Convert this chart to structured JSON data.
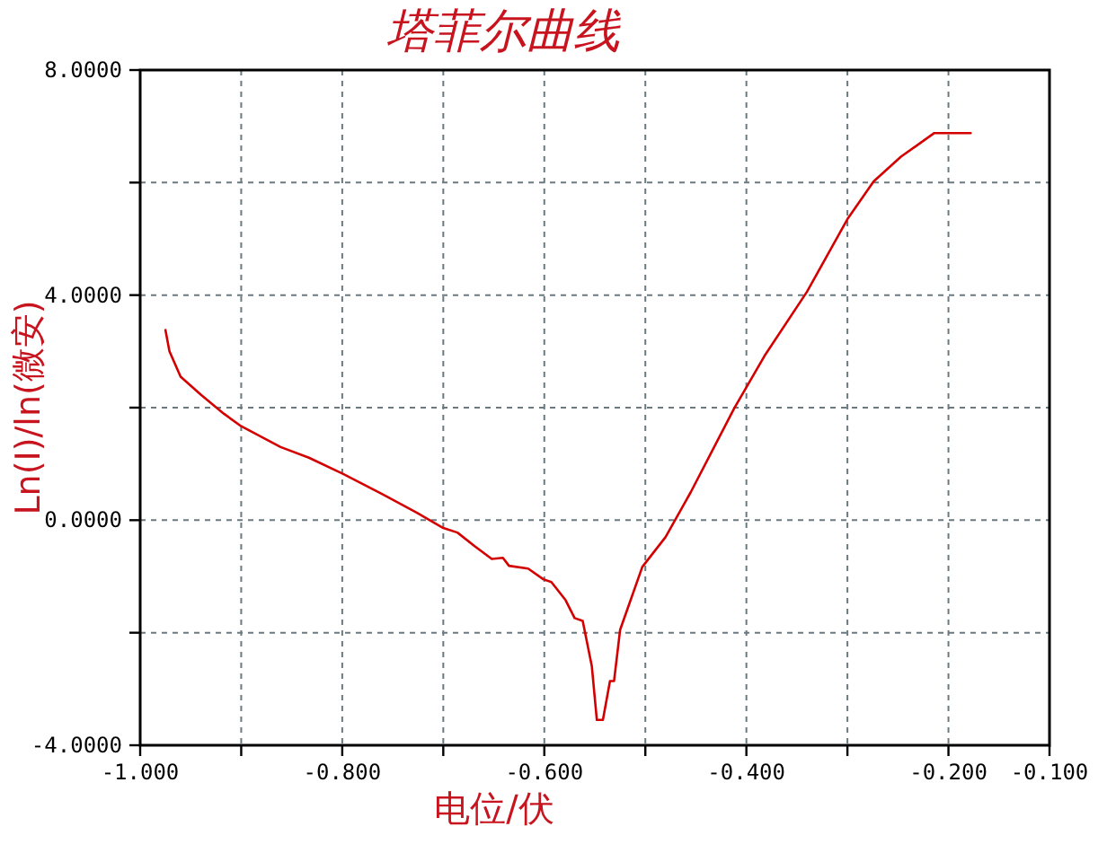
{
  "chart_data": {
    "type": "line",
    "title": "塔菲尔曲线",
    "xlabel": "电位/伏",
    "ylabel": "Ln(I)/ln(微安)",
    "xlim": [
      -1.0,
      -0.1
    ],
    "ylim": [
      -4,
      8
    ],
    "xticks": [
      {
        "value": -1.0,
        "label": "-1.000"
      },
      {
        "value": -0.9,
        "label": null
      },
      {
        "value": -0.8,
        "label": "-0.800"
      },
      {
        "value": -0.7,
        "label": null
      },
      {
        "value": -0.6,
        "label": "-0.600"
      },
      {
        "value": -0.5,
        "label": null
      },
      {
        "value": -0.4,
        "label": "-0.400"
      },
      {
        "value": -0.3,
        "label": null
      },
      {
        "value": -0.2,
        "label": "-0.200"
      },
      {
        "value": -0.1,
        "label": "-0.100"
      }
    ],
    "yticks": [
      {
        "value": -4,
        "label": "-4.0000"
      },
      {
        "value": -2,
        "label": null
      },
      {
        "value": 0,
        "label": "0.0000"
      },
      {
        "value": 2,
        "label": null
      },
      {
        "value": 4,
        "label": "4.0000"
      },
      {
        "value": 6,
        "label": null
      },
      {
        "value": 8,
        "label": "8.0000"
      }
    ],
    "grid": true,
    "x": [
      -0.975,
      -0.971,
      -0.96,
      -0.94,
      -0.917,
      -0.9,
      -0.861,
      -0.833,
      -0.799,
      -0.759,
      -0.726,
      -0.7,
      -0.686,
      -0.669,
      -0.652,
      -0.641,
      -0.635,
      -0.616,
      -0.601,
      -0.593,
      -0.579,
      -0.57,
      -0.562,
      -0.553,
      -0.548,
      -0.542,
      -0.535,
      -0.531,
      -0.525,
      -0.503,
      -0.48,
      -0.455,
      -0.412,
      -0.381,
      -0.34,
      -0.3,
      -0.274,
      -0.247,
      -0.214,
      -0.178
    ],
    "series": [
      {
        "color": "#d40000",
        "values": [
          3.38,
          3.0,
          2.55,
          2.23,
          1.89,
          1.67,
          1.3,
          1.11,
          0.82,
          0.45,
          0.13,
          -0.14,
          -0.22,
          -0.46,
          -0.69,
          -0.67,
          -0.81,
          -0.86,
          -1.05,
          -1.1,
          -1.42,
          -1.74,
          -1.79,
          -2.59,
          -3.55,
          -3.55,
          -2.86,
          -2.86,
          -1.95,
          -0.83,
          -0.3,
          0.5,
          1.99,
          2.95,
          4.06,
          5.35,
          6.02,
          6.46,
          6.88,
          6.88
        ]
      }
    ]
  }
}
